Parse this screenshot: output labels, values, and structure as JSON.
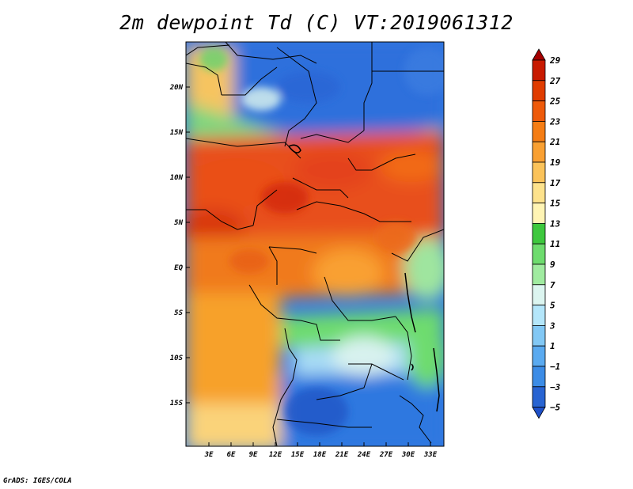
{
  "title": "2m dewpoint Td (C) VT:2019061312",
  "footer": "GrADS: IGES/COLA",
  "map": {
    "lat_labels": [
      "20N",
      "15N",
      "10N",
      "5N",
      "EQ",
      "5S",
      "10S",
      "15S"
    ],
    "lon_labels": [
      "3E",
      "6E",
      "9E",
      "12E",
      "15E",
      "18E",
      "21E",
      "24E",
      "27E",
      "30E",
      "33E"
    ]
  },
  "colorbar": {
    "labels": [
      "29",
      "27",
      "25",
      "23",
      "21",
      "19",
      "17",
      "15",
      "13",
      "11",
      "9",
      "7",
      "5",
      "3",
      "1",
      "−1",
      "−3",
      "−5"
    ],
    "colors": [
      "#a50000",
      "#c81a00",
      "#e03c00",
      "#ee5a0a",
      "#f57d14",
      "#f9a032",
      "#fbc35a",
      "#fde28c",
      "#fff4b4",
      "#3ec83e",
      "#6edc6e",
      "#a0eba0",
      "#dcf5f0",
      "#b4e6fa",
      "#82c8f5",
      "#5aaaf0",
      "#3c8ce6",
      "#2864d2",
      "#1e50c8"
    ]
  }
}
